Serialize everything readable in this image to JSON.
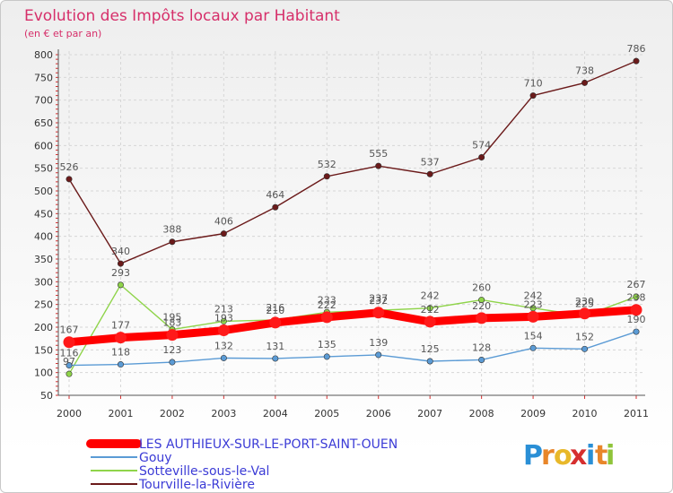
{
  "chart_data": {
    "type": "line",
    "title": "Evolution des Impôts locaux par Habitant",
    "subtitle": "(en € et par an)",
    "xlabel": "",
    "ylabel": "",
    "ylim": [
      50,
      800
    ],
    "y_ticks": [
      50,
      100,
      150,
      200,
      250,
      300,
      350,
      400,
      450,
      500,
      550,
      600,
      650,
      700,
      750,
      800
    ],
    "categories": [
      "2000",
      "2001",
      "2002",
      "2003",
      "2004",
      "2005",
      "2006",
      "2007",
      "2008",
      "2009",
      "2010",
      "2011"
    ],
    "grid": true,
    "legend_position": "bottom-left",
    "series": [
      {
        "name": "LES AUTHIEUX-SUR-LE-PORT-SAINT-OUEN",
        "color": "#ff0000",
        "values": [
          167,
          177,
          183,
          193,
          210,
          222,
          232,
          212,
          220,
          223,
          230,
          238
        ],
        "labels": [
          "167",
          "177",
          "183",
          "193",
          "210",
          "222",
          "232",
          "212",
          "220",
          "223",
          "230",
          "238"
        ]
      },
      {
        "name": "Gouy",
        "color": "#5b9bd5",
        "values": [
          116,
          118,
          123,
          132,
          131,
          135,
          139,
          125,
          128,
          154,
          152,
          190
        ],
        "labels": [
          "116",
          "118",
          "123",
          "132",
          "131",
          "135",
          "139",
          "125",
          "128",
          "154",
          "152",
          "190"
        ]
      },
      {
        "name": "Sotteville-sous-le-Val",
        "color": "#8fd44a",
        "values": [
          97,
          293,
          195,
          213,
          216,
          233,
          237,
          242,
          260,
          242,
          225,
          267
        ],
        "labels": [
          "97",
          "293",
          "195",
          "213",
          "216",
          "233",
          "237",
          "242",
          "260",
          "242",
          "225",
          "267"
        ]
      },
      {
        "name": "Tourville-la-Rivière",
        "color": "#6b1a1a",
        "values": [
          526,
          340,
          388,
          406,
          464,
          532,
          555,
          537,
          574,
          710,
          738,
          786
        ],
        "labels": [
          "526",
          "340",
          "388",
          "406",
          "464",
          "532",
          "555",
          "537",
          "574",
          "710",
          "738",
          "786"
        ]
      }
    ]
  },
  "logo": {
    "letters": [
      "P",
      "r",
      "o",
      "x",
      "i",
      "t",
      "i"
    ],
    "colors": [
      "#2a8fd6",
      "#e8862a",
      "#e8b82a",
      "#d62f2f",
      "#2a8fd6",
      "#e8862a",
      "#8fc43a"
    ]
  }
}
